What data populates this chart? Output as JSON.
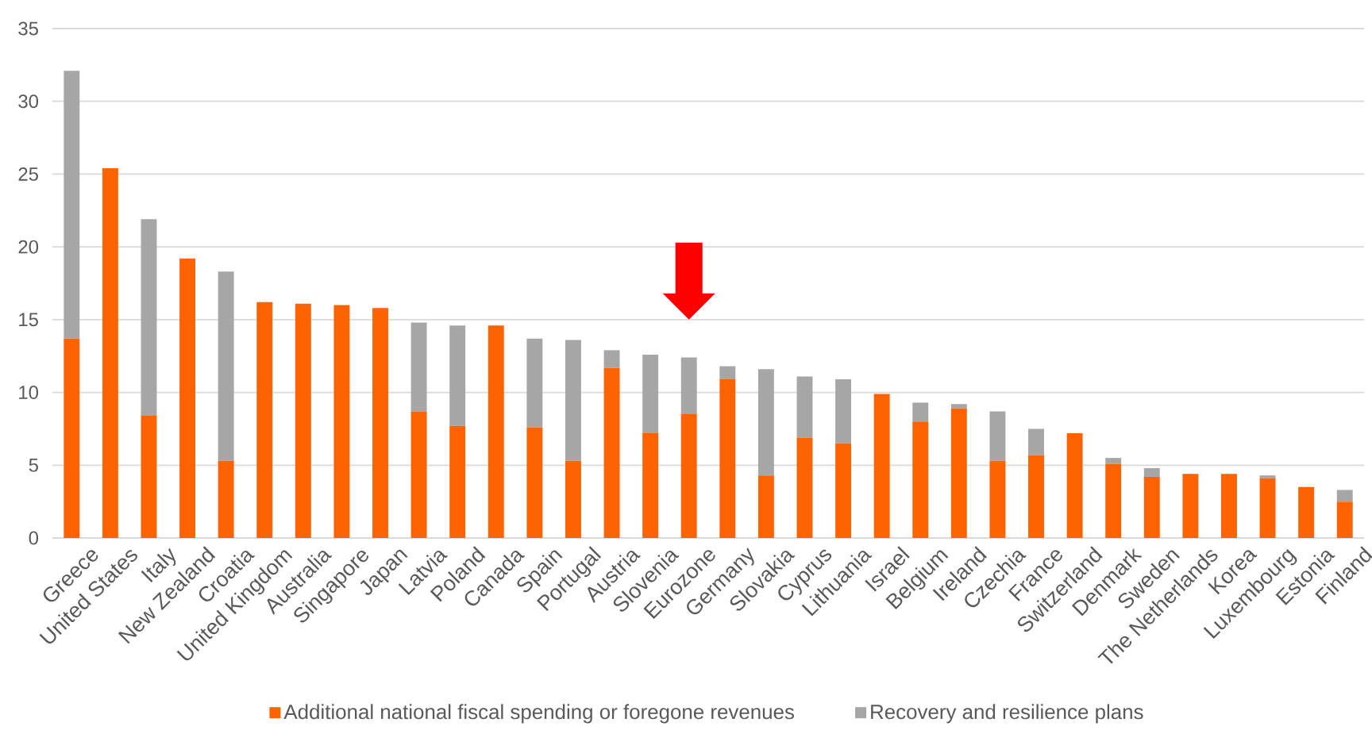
{
  "chart_data": {
    "type": "bar",
    "stacked": true,
    "categories": [
      "Greece",
      "United States",
      "Italy",
      "New Zealand",
      "Croatia",
      "United Kingdom",
      "Australia",
      "Singapore",
      "Japan",
      "Latvia",
      "Poland",
      "Canada",
      "Spain",
      "Portugal",
      "Austria",
      "Slovenia",
      "Eurozone",
      "Germany",
      "Slovakia",
      "Cyprus",
      "Lithuania",
      "Israel",
      "Belgium",
      "Ireland",
      "Czechia",
      "France",
      "Switzerland",
      "Denmark",
      "Sweden",
      "The Netherlands",
      "Korea",
      "Luxembourg",
      "Estonia",
      "Finland"
    ],
    "series": [
      {
        "name": "Additional national fiscal spending or foregone revenues",
        "color": "#ff6200",
        "values": [
          13.7,
          25.4,
          8.4,
          19.2,
          5.3,
          16.2,
          16.1,
          16.0,
          15.8,
          8.7,
          7.7,
          14.6,
          7.6,
          5.3,
          11.7,
          7.2,
          8.5,
          10.9,
          4.3,
          6.9,
          6.5,
          9.9,
          8.0,
          8.9,
          5.3,
          5.7,
          7.2,
          5.1,
          4.2,
          4.4,
          4.4,
          4.1,
          3.5,
          2.5
        ]
      },
      {
        "name": "Recovery and resilience plans",
        "color": "#a6a6a6",
        "values": [
          18.4,
          null,
          13.5,
          null,
          13.0,
          null,
          null,
          null,
          null,
          6.1,
          6.9,
          null,
          6.1,
          8.3,
          1.2,
          5.4,
          3.9,
          0.9,
          7.3,
          4.2,
          4.4,
          null,
          1.3,
          0.3,
          3.4,
          1.8,
          null,
          0.4,
          0.6,
          null,
          null,
          0.2,
          null,
          0.8
        ]
      }
    ],
    "ylim": [
      0,
      35
    ],
    "yticks": [
      0,
      5,
      10,
      15,
      20,
      25,
      30,
      35
    ],
    "grid": "y",
    "legend": "bottom"
  }
}
